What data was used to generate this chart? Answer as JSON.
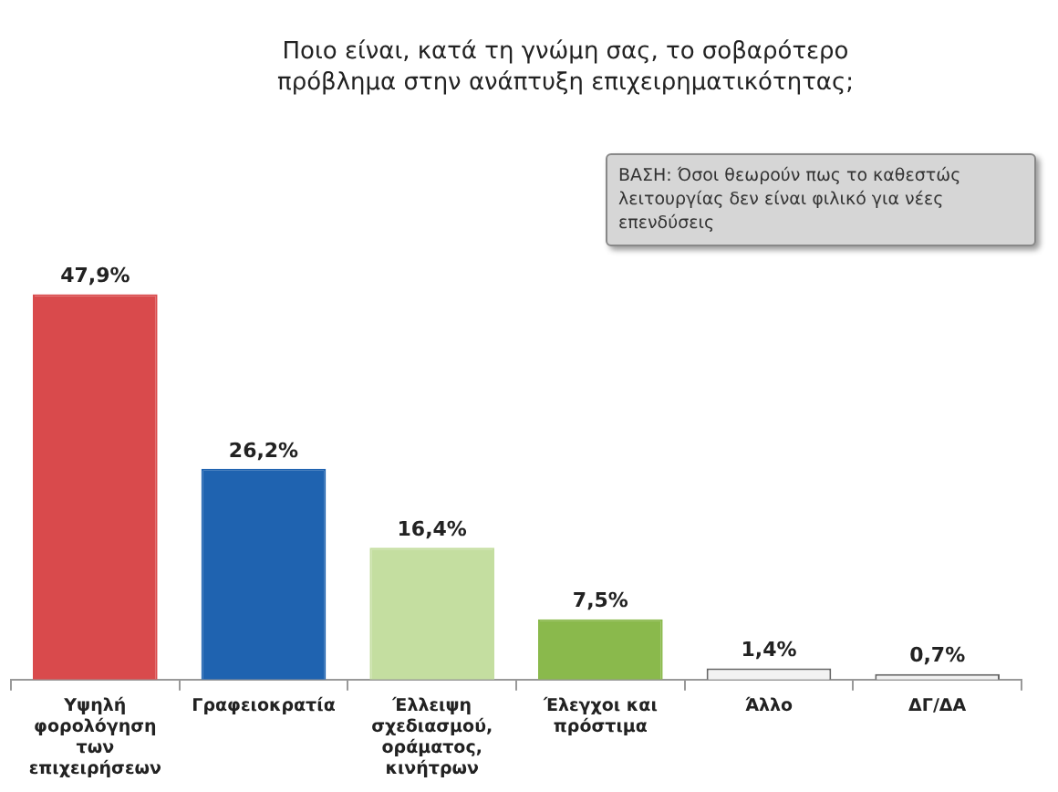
{
  "chart_data": {
    "type": "bar",
    "title": "Ποιο είναι, κατά τη γνώμη σας, το σοβαρότερο πρόβλημα στην ανάπτυξη επιχειρηματικότητας;",
    "annotations": [
      "ΒΑΣΗ: Όσοι θεωρούν πως το καθεστώς λειτουργίας δεν είναι φιλικό για νέες επενδύσεις"
    ],
    "categories": [
      "Υψηλή φορολόγηση των επιχειρήσεων",
      "Γραφειοκρατία",
      "Έλλειψη σχεδιασμού, οράματος, κινήτρων",
      "Έλεγχοι και πρόστιμα",
      "Άλλο",
      "ΔΓ/ΔΑ"
    ],
    "values": [
      47.9,
      26.2,
      16.4,
      7.5,
      1.4,
      0.7
    ],
    "colors": [
      "#d94a4c",
      "#1f63b0",
      "#c4dea0",
      "#8ab94c",
      "#f2f2f2",
      "#f2f2f2"
    ],
    "value_labels": [
      "47,9%",
      "26,2%",
      "16,4%",
      "7,5%",
      "1,4%",
      "0,7%"
    ],
    "grid": false,
    "legend": false
  }
}
